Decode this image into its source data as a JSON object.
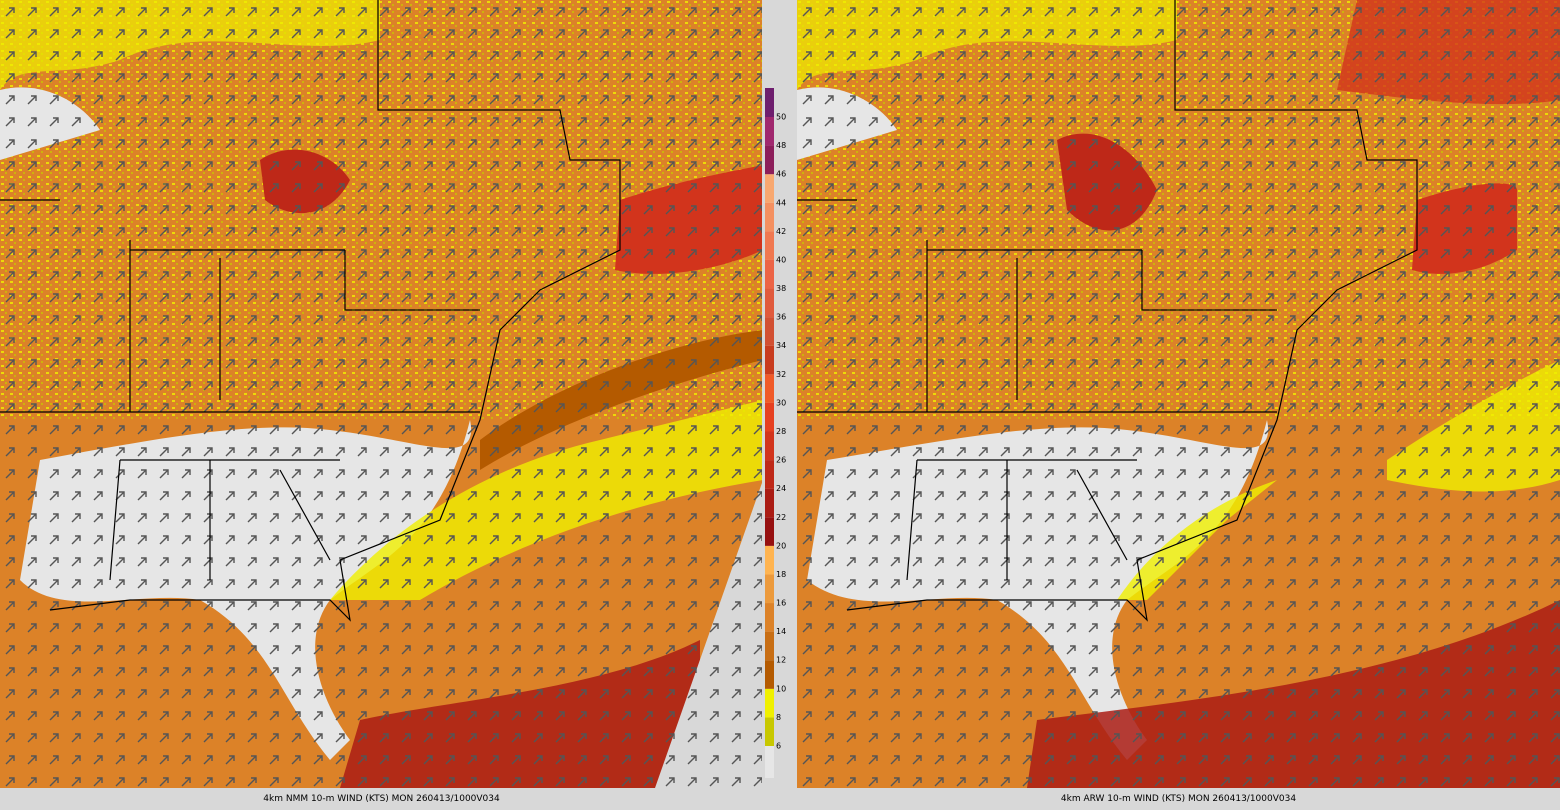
{
  "panels": [
    {
      "caption": "4km NMM 10-m WIND (KTS) MON 260413/1000V034"
    },
    {
      "caption": "4km ARW 10-m WIND (KTS) MON 260413/1000V034"
    }
  ],
  "colorbar": {
    "ticks": [
      6,
      8,
      10,
      12,
      14,
      16,
      18,
      20,
      22,
      24,
      26,
      28,
      30,
      32,
      34,
      36,
      38,
      40,
      42,
      44,
      46,
      48,
      50
    ],
    "colors": [
      "#e6e6e6",
      "#c8c800",
      "#f0f000",
      "#b45a00",
      "#c86e14",
      "#dc8228",
      "#ec9a3c",
      "#ffb450",
      "#961010",
      "#aa1c14",
      "#be2818",
      "#d2341c",
      "#e64020",
      "#f05a28",
      "#c83c1e",
      "#d25032",
      "#e05a3c",
      "#ec6446",
      "#f07850",
      "#f49060",
      "#f8a870",
      "#8c1e5a",
      "#a0286e",
      "#6e1e6e"
    ]
  }
}
